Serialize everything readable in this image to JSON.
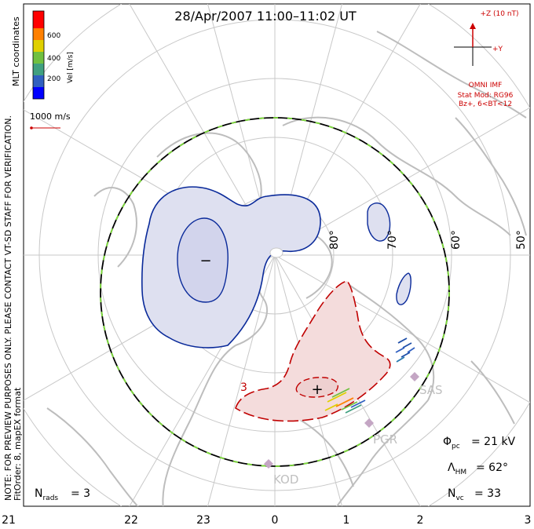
{
  "title": "28/Apr/2007 11:00–11:02 UT",
  "side_note_line1": "NOTE: FOR PREVIEW PURPOSES ONLY. PLEASE CONTACT VT-SD STAFF FOR VERIFICATION.",
  "side_note_line2": "FitOrder: 8, mapEX format",
  "coordinates_label": "MLT coordinates",
  "colorbar": {
    "label": "Vel [m/s]",
    "ticks": [
      "600",
      "400",
      "200"
    ],
    "colors": [
      "#0000ff",
      "#3060c0",
      "#40a080",
      "#70c040",
      "#e0d000",
      "#ff8000",
      "#ff0000"
    ]
  },
  "vector_scale_label": "1000 m/s",
  "imf": {
    "z_label": "+Z (10 nT)",
    "y_label": "+Y",
    "source": "OMNI IMF",
    "stat_mod": "Stat Mod: RG96",
    "condition": "Bz+, 6<BT<12"
  },
  "latitude_labels": [
    "80°",
    "70°",
    "60°",
    "50°"
  ],
  "mlt_labels": [
    "21",
    "22",
    "23",
    "0",
    "1",
    "2",
    "3"
  ],
  "radars": [
    "SAS",
    "PGR",
    "KOD"
  ],
  "minus_marker": "−",
  "plus_marker": "+",
  "contour_label": "3",
  "stats": {
    "phi_pc_value": "= 21 kV",
    "lambda_hm_value": "= 62°",
    "n_vc_value": "= 33",
    "n_rads_value": "= 3"
  }
}
